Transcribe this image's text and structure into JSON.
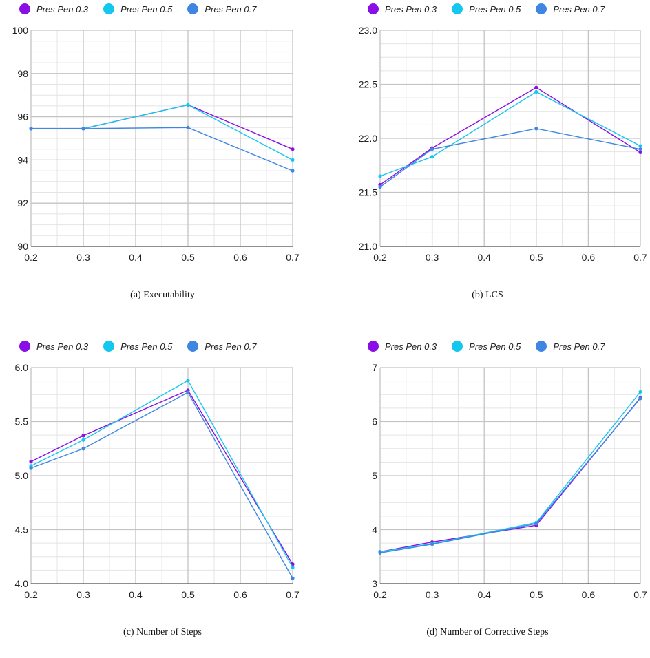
{
  "legend": {
    "colors": [
      "#8a0ee6",
      "#13c7ee",
      "#3f86e3"
    ]
  },
  "chart_data": [
    {
      "type": "line",
      "caption": "(a) Executability",
      "x": [
        0.2,
        0.3,
        0.5,
        0.7
      ],
      "xlim": [
        0.2,
        0.7
      ],
      "xticks": [
        "0.2",
        "0.3",
        "0.4",
        "0.5",
        "0.6",
        "0.7"
      ],
      "ylim": [
        90,
        100
      ],
      "yticks": [
        "90",
        "92",
        "94",
        "96",
        "98",
        "100"
      ],
      "grid": true,
      "legend_position": "top",
      "series": [
        {
          "name": "Pres Pen 0.3",
          "values": [
            95.45,
            95.45,
            96.55,
            94.5
          ]
        },
        {
          "name": "Pres Pen 0.5",
          "values": [
            95.45,
            95.45,
            96.55,
            94.0
          ]
        },
        {
          "name": "Pres Pen 0.7",
          "values": [
            95.45,
            95.45,
            95.5,
            93.5
          ]
        }
      ]
    },
    {
      "type": "line",
      "caption": "(b) LCS",
      "x": [
        0.2,
        0.3,
        0.5,
        0.7
      ],
      "xlim": [
        0.2,
        0.7
      ],
      "xticks": [
        "0.2",
        "0.3",
        "0.4",
        "0.5",
        "0.6",
        "0.7"
      ],
      "ylim": [
        21.0,
        23.0
      ],
      "yticks": [
        "21.0",
        "21.5",
        "22.0",
        "22.5",
        "23.0"
      ],
      "grid": true,
      "legend_position": "top",
      "series": [
        {
          "name": "Pres Pen 0.3",
          "values": [
            21.57,
            21.91,
            22.47,
            21.87
          ]
        },
        {
          "name": "Pres Pen 0.5",
          "values": [
            21.65,
            21.83,
            22.43,
            21.93
          ]
        },
        {
          "name": "Pres Pen 0.7",
          "values": [
            21.55,
            21.9,
            22.09,
            21.9
          ]
        }
      ]
    },
    {
      "type": "line",
      "caption": "(c) Number of Steps",
      "x": [
        0.2,
        0.3,
        0.5,
        0.7
      ],
      "xlim": [
        0.2,
        0.7
      ],
      "xticks": [
        "0.2",
        "0.3",
        "0.4",
        "0.5",
        "0.6",
        "0.7"
      ],
      "ylim": [
        4.0,
        6.0
      ],
      "yticks": [
        "4.0",
        "4.5",
        "5.0",
        "5.5",
        "6.0"
      ],
      "grid": true,
      "legend_position": "top",
      "series": [
        {
          "name": "Pres Pen 0.3",
          "values": [
            5.13,
            5.37,
            5.79,
            4.18
          ]
        },
        {
          "name": "Pres Pen 0.5",
          "values": [
            5.09,
            5.33,
            5.88,
            4.15
          ]
        },
        {
          "name": "Pres Pen 0.7",
          "values": [
            5.07,
            5.25,
            5.77,
            4.05
          ]
        }
      ]
    },
    {
      "type": "line",
      "caption": "(d) Number of Corrective Steps",
      "x": [
        0.2,
        0.3,
        0.5,
        0.7
      ],
      "xlim": [
        0.2,
        0.7
      ],
      "xticks": [
        "0.2",
        "0.3",
        "0.4",
        "0.5",
        "0.6",
        "0.7"
      ],
      "ylim": [
        3,
        7
      ],
      "yticks": [
        "3",
        "4",
        "5",
        "6",
        "7"
      ],
      "grid": true,
      "legend_position": "top",
      "series": [
        {
          "name": "Pres Pen 0.3",
          "values": [
            3.59,
            3.77,
            4.08,
            6.44
          ]
        },
        {
          "name": "Pres Pen 0.5",
          "values": [
            3.59,
            3.74,
            4.13,
            6.55
          ]
        },
        {
          "name": "Pres Pen 0.7",
          "values": [
            3.57,
            3.73,
            4.11,
            6.43
          ]
        }
      ]
    }
  ]
}
